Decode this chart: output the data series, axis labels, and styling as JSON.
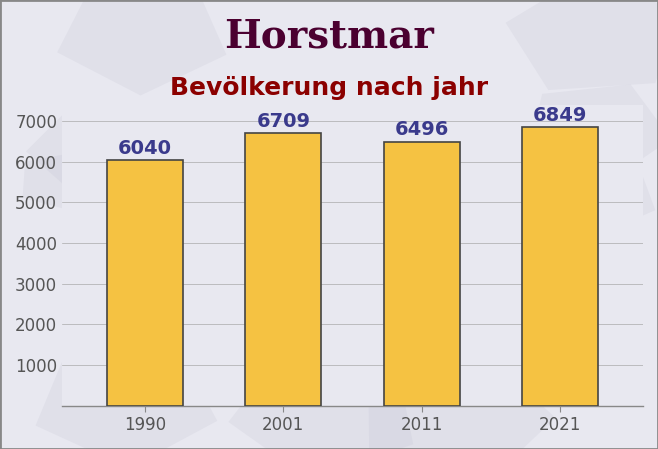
{
  "title": "Horstmar",
  "subtitle": "Bevölkerung nach jahr",
  "years": [
    1990,
    2001,
    2011,
    2021
  ],
  "values": [
    6040,
    6709,
    6496,
    6849
  ],
  "bar_color": "#F5C242",
  "bar_edge_color": "#444444",
  "bar_width": 0.55,
  "title_color": "#4B0030",
  "subtitle_color": "#8B0000",
  "label_color": "#3A3A8C",
  "ytick_color": "#555555",
  "xtick_color": "#555555",
  "background_color": "#E8E8F0",
  "plot_bg_color": "#E8E8F0",
  "ylim": [
    0,
    7400
  ],
  "yticks": [
    1000,
    2000,
    3000,
    4000,
    5000,
    6000,
    7000
  ],
  "title_fontsize": 28,
  "subtitle_fontsize": 18,
  "label_fontsize": 14,
  "tick_fontsize": 12
}
